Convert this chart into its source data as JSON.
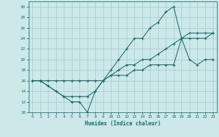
{
  "title": "",
  "xlabel": "Humidex (Indice chaleur)",
  "bg_color": "#cce8e8",
  "grid_color": "#aacccc",
  "line_color": "#1a6e6e",
  "xlim": [
    -0.5,
    23.5
  ],
  "ylim": [
    10,
    31
  ],
  "xticks": [
    0,
    1,
    2,
    3,
    4,
    5,
    6,
    7,
    8,
    9,
    10,
    11,
    12,
    13,
    14,
    15,
    16,
    17,
    18,
    19,
    20,
    21,
    22,
    23
  ],
  "yticks": [
    10,
    12,
    14,
    16,
    18,
    20,
    22,
    24,
    26,
    28,
    30
  ],
  "line1_x": [
    0,
    1,
    2,
    3,
    4,
    5,
    6,
    7,
    8,
    9,
    10,
    11,
    12,
    13,
    14,
    15,
    16,
    17,
    18,
    19,
    20,
    21,
    22,
    23
  ],
  "line1_y": [
    16,
    16,
    15,
    14,
    13,
    12,
    12,
    10,
    14,
    16,
    18,
    20,
    22,
    24,
    24,
    26,
    27,
    29,
    30,
    24,
    20,
    19,
    20,
    20
  ],
  "line2_x": [
    0,
    1,
    2,
    3,
    4,
    5,
    6,
    7,
    8,
    9,
    10,
    11,
    12,
    13,
    14,
    15,
    16,
    17,
    18,
    19,
    20,
    21,
    22,
    23
  ],
  "line2_y": [
    16,
    16,
    15,
    14,
    13,
    13,
    13,
    13,
    14,
    16,
    17,
    18,
    19,
    19,
    20,
    20,
    21,
    22,
    23,
    24,
    24,
    24,
    24,
    25
  ],
  "line3_x": [
    0,
    1,
    2,
    3,
    4,
    5,
    6,
    7,
    8,
    9,
    10,
    11,
    12,
    13,
    14,
    15,
    16,
    17,
    18,
    19,
    20,
    21,
    22,
    23
  ],
  "line3_y": [
    16,
    16,
    16,
    16,
    16,
    16,
    16,
    16,
    16,
    16,
    17,
    17,
    17,
    18,
    18,
    19,
    19,
    19,
    19,
    24,
    25,
    25,
    25,
    25
  ]
}
